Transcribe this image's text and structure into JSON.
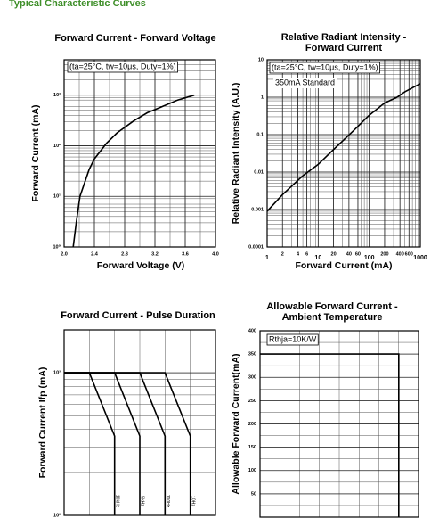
{
  "header": {
    "title": "Typical Characteristic Curves"
  },
  "chart_data": [
    {
      "type": "line",
      "title": [
        "Forward Current - Forward Voltage"
      ],
      "x_label": "Forward Voltage (V)",
      "y_label": "Forward Current (mA)",
      "xlim": [
        2.0,
        4.0
      ],
      "ylim": [
        1,
        5000
      ],
      "yscale": "log",
      "xticks": [
        {
          "value": 2.0,
          "label": "2.0"
        },
        2.4,
        2.8,
        3.2,
        3.6,
        {
          "value": 4.0,
          "label": "4.0"
        }
      ],
      "yticks": [
        {
          "value": 1,
          "label": "10⁰"
        },
        {
          "value": 10,
          "label": "10¹"
        },
        {
          "value": 100,
          "label": "10²"
        },
        {
          "value": 1000,
          "label": "10³"
        }
      ],
      "annotations": [
        "(ta=25°C, tw=10μs, Duty=1%)"
      ],
      "series": [
        {
          "color": "#000000",
          "x": [
            2.12,
            2.16,
            2.21,
            2.33,
            2.4,
            2.56,
            2.7,
            2.92,
            3.1,
            3.27,
            3.5,
            3.72
          ],
          "values": [
            1,
            3,
            10,
            34,
            55,
            112,
            180,
            310,
            450,
            570,
            800,
            1000
          ]
        }
      ]
    },
    {
      "type": "line",
      "title": [
        "Relative Radiant Intensity -",
        "Forward Current"
      ],
      "x_label": "Forward Current (mA)",
      "y_label": "Relative Radiant Intensity (A.U.)",
      "xlim": [
        1,
        1000
      ],
      "ylim": [
        0.0001,
        10
      ],
      "xscale": "log",
      "yscale": "log",
      "xticks": [
        1,
        2,
        4,
        6,
        10,
        20,
        40,
        60,
        100,
        200,
        400,
        600,
        1000
      ],
      "yticks": [
        0.0001,
        0.001,
        0.01,
        0.1,
        1,
        10
      ],
      "annotations": [
        "(ta=25°C, tw=10μs, Duty=1%)",
        "350mA Standard"
      ],
      "series": [
        {
          "color": "#000000",
          "x": [
            1,
            2,
            5,
            10,
            20,
            50,
            100,
            200,
            350,
            500,
            1000
          ],
          "values": [
            0.0009,
            0.0025,
            0.008,
            0.016,
            0.04,
            0.13,
            0.33,
            0.7,
            1,
            1.4,
            2.3
          ]
        }
      ]
    },
    {
      "type": "line",
      "title": [
        "Forward Current - Pulse Duration"
      ],
      "y_label": "Forward Current Ifp (mA)",
      "xlim": [
        0,
        6
      ],
      "ylim": [
        100,
        2000
      ],
      "yscale": "log",
      "yticks": [
        {
          "value": 100,
          "label": "10²"
        },
        {
          "value": 1000,
          "label": "10³"
        }
      ],
      "annotations": [],
      "series": [
        {
          "name": "10kHz",
          "color": "#000000",
          "x": [
            0,
            1,
            2,
            2
          ],
          "values": [
            1000,
            1000,
            360,
            100
          ]
        },
        {
          "name": "5kHz",
          "color": "#000000",
          "x": [
            0,
            2,
            3,
            3
          ],
          "values": [
            1000,
            1000,
            360,
            100
          ]
        },
        {
          "name": "100Hz",
          "color": "#000000",
          "x": [
            0,
            3,
            4,
            4
          ],
          "values": [
            1000,
            1000,
            360,
            100
          ]
        },
        {
          "name": "10Hz",
          "color": "#000000",
          "x": [
            0,
            4,
            5,
            5
          ],
          "values": [
            1000,
            1000,
            360,
            100
          ]
        }
      ]
    },
    {
      "type": "line",
      "title": [
        "Allowable Forward Current -",
        "Ambient Temperature"
      ],
      "y_label": "Allowable Forward Current(mA)",
      "xlim": [
        0,
        8
      ],
      "ylim": [
        0,
        400
      ],
      "yticks": [
        50,
        100,
        150,
        200,
        250,
        300,
        350,
        400
      ],
      "annotations": [
        "Rthja=10K/W"
      ],
      "series": [
        {
          "color": "#000000",
          "x": [
            0,
            7,
            7
          ],
          "values": [
            350,
            350,
            0
          ]
        }
      ]
    }
  ]
}
